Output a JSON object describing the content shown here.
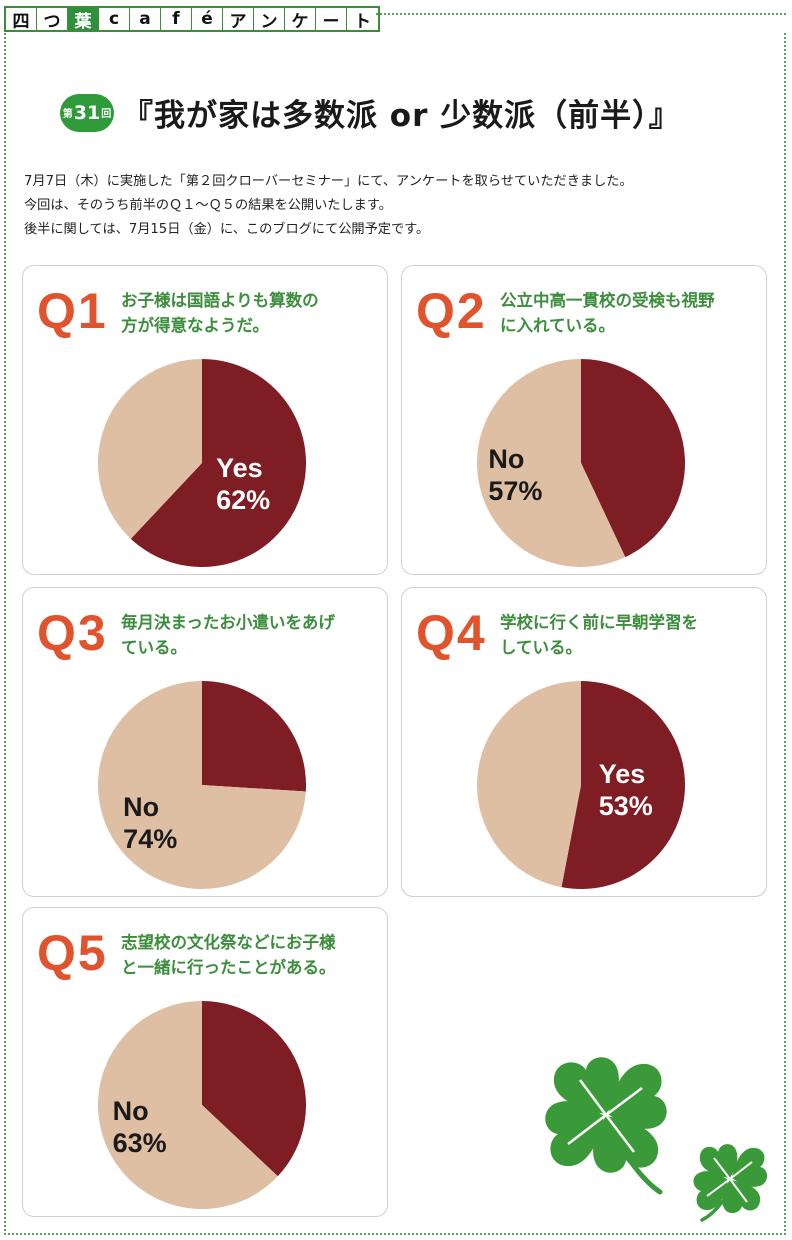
{
  "logo": {
    "chars": [
      "四",
      "つ",
      "葉",
      "c",
      "a",
      "f",
      "é",
      "ア",
      "ン",
      "ケ",
      "ー",
      "ト"
    ]
  },
  "title": {
    "badge_prefix": "第",
    "badge_number": "31",
    "badge_suffix": "回",
    "text": "『我が家は多数派 or 少数派（前半）』"
  },
  "intro": [
    "7月7日（木）に実施した「第２回クローバーセミナー」にて、アンケートを取らせていただきました。",
    "今回は、そのうち前半のＱ１～Ｑ５の結果を公開いたします。",
    "後半に関しては、7月15日（金）に、このブログにて公開予定です。"
  ],
  "colors": {
    "yes": "#7f1d24",
    "no": "#dfbfa3",
    "qnum": "#e0532c",
    "question": "#3c8d3c",
    "green": "#2f8f3a"
  },
  "chart_data": [
    {
      "type": "pie",
      "id": "Q1",
      "title": "お子様は国語よりも算数の方が得意なようだ。",
      "slices": [
        {
          "name": "Yes",
          "value": 62
        },
        {
          "name": "No",
          "value": 38
        }
      ],
      "labels": [
        {
          "slice": "Yes",
          "name": "Yes",
          "percent": "62%"
        }
      ]
    },
    {
      "type": "pie",
      "id": "Q2",
      "title": "公立中高一貫校の受検も視野に入れている。",
      "slices": [
        {
          "name": "Yes",
          "value": 43
        },
        {
          "name": "No",
          "value": 57
        }
      ],
      "labels": [
        {
          "slice": "No",
          "name": "No",
          "percent": "57%"
        }
      ]
    },
    {
      "type": "pie",
      "id": "Q3",
      "title": "毎月決まったお小遣いをあげている。",
      "slices": [
        {
          "name": "Yes",
          "value": 26
        },
        {
          "name": "No",
          "value": 74
        }
      ],
      "labels": [
        {
          "slice": "No",
          "name": "No",
          "percent": "74%"
        }
      ]
    },
    {
      "type": "pie",
      "id": "Q4",
      "title": "学校に行く前に早朝学習をしている。",
      "slices": [
        {
          "name": "Yes",
          "value": 53
        },
        {
          "name": "No",
          "value": 47
        }
      ],
      "labels": [
        {
          "slice": "Yes",
          "name": "Yes",
          "percent": "53%"
        }
      ]
    },
    {
      "type": "pie",
      "id": "Q5",
      "title": "志望校の文化祭などにお子様と一緒に行ったことがある。",
      "slices": [
        {
          "name": "Yes",
          "value": 37
        },
        {
          "name": "No",
          "value": 63
        }
      ],
      "labels": [
        {
          "slice": "No",
          "name": "No",
          "percent": "63%"
        }
      ]
    }
  ],
  "questions": [
    {
      "num": "Q1",
      "lines": [
        "お子様は国語よりも算数の",
        "方が得意なようだ。"
      ]
    },
    {
      "num": "Q2",
      "lines": [
        "公立中高一貫校の受検も視野",
        "に入れている。"
      ]
    },
    {
      "num": "Q3",
      "lines": [
        "毎月決まったお小遣いをあげ",
        "ている。"
      ]
    },
    {
      "num": "Q4",
      "lines": [
        "学校に行く前に早朝学習を",
        "している。"
      ]
    },
    {
      "num": "Q5",
      "lines": [
        "志望校の文化祭などにお子様",
        "と一緒に行ったことがある。"
      ]
    }
  ]
}
